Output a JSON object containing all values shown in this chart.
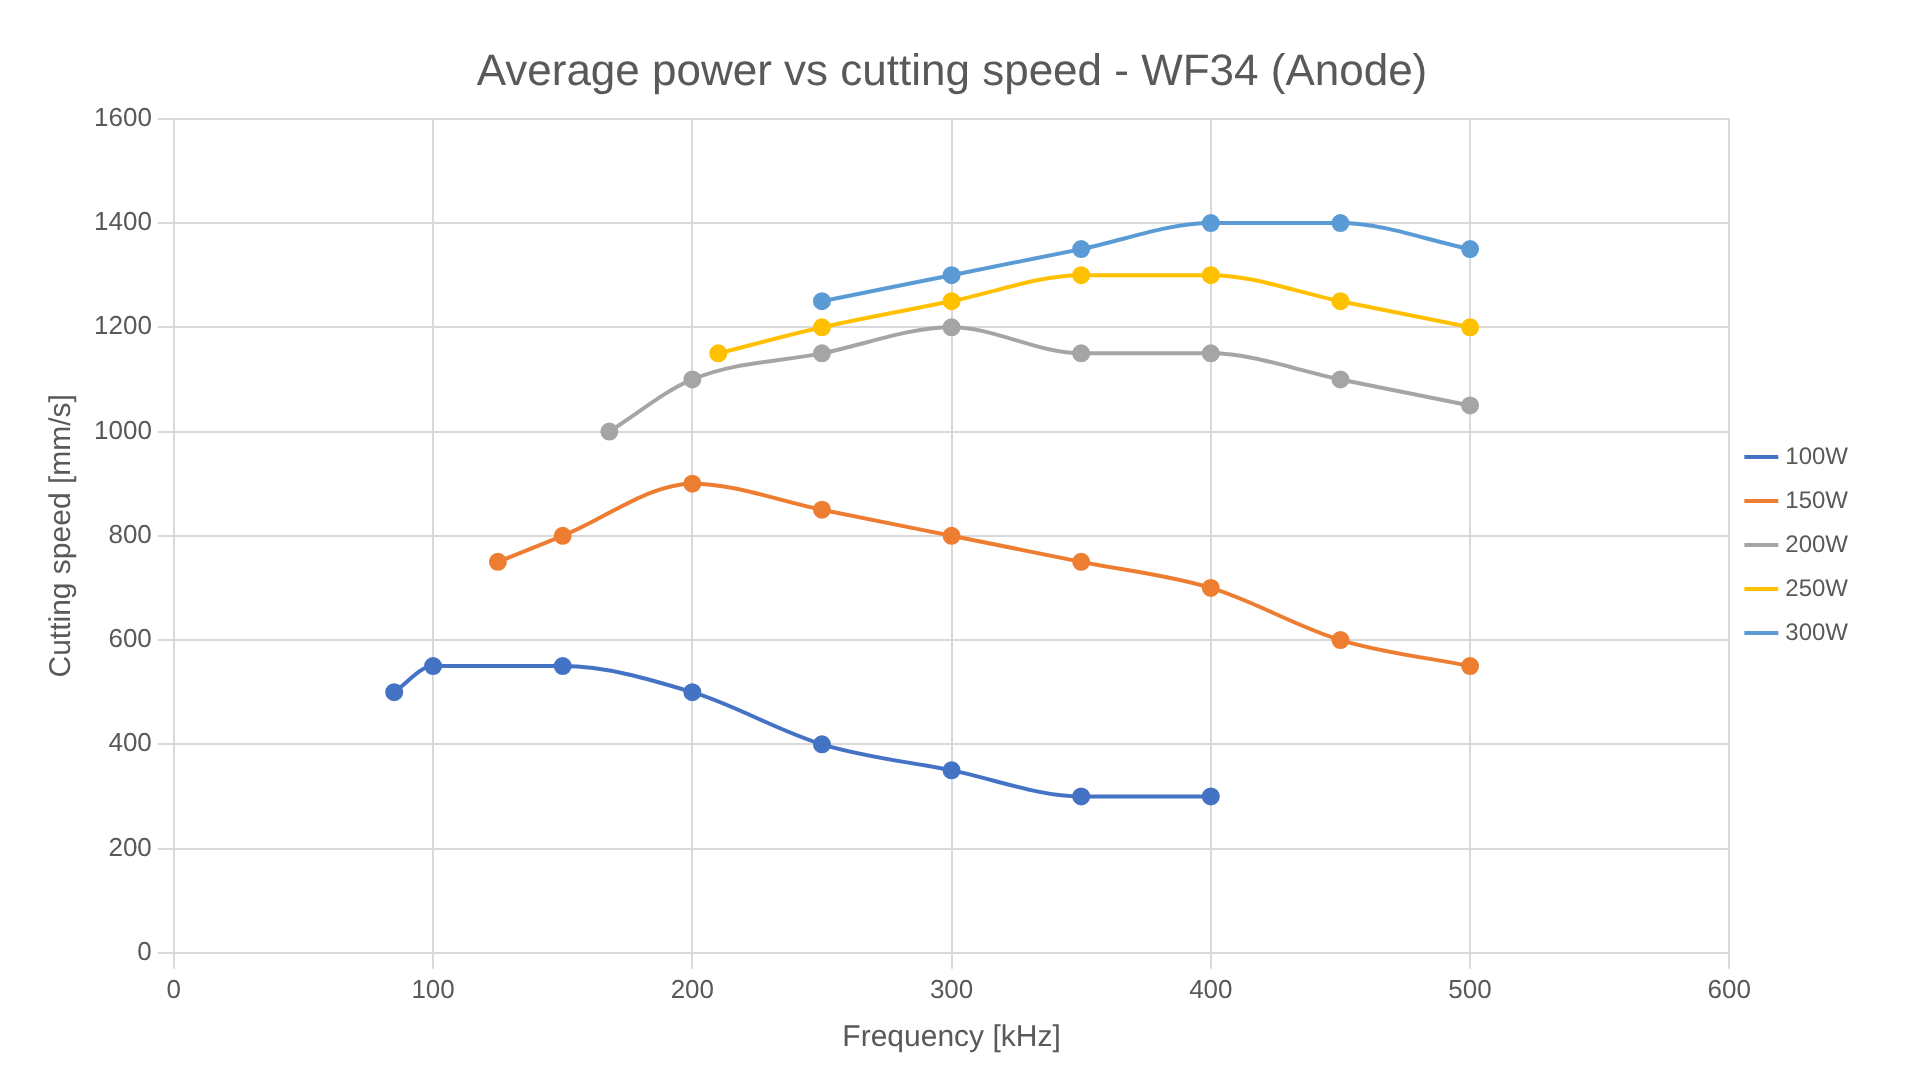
{
  "chart_data": {
    "type": "line",
    "title": "Average power vs cutting speed - WF34 (Anode)",
    "xlabel": "Frequency [kHz]",
    "ylabel": "Cutting speed [mm/s]",
    "series": [
      {
        "name": "100W",
        "color": "#4472c4",
        "x": [
          85,
          100,
          150,
          200,
          250,
          300,
          350,
          400
        ],
        "values": [
          500,
          550,
          550,
          500,
          400,
          350,
          300,
          300
        ]
      },
      {
        "name": "150W",
        "color": "#ed7d31",
        "x": [
          125,
          150,
          200,
          250,
          300,
          350,
          400,
          450,
          500
        ],
        "values": [
          750,
          800,
          900,
          850,
          800,
          750,
          700,
          600,
          550
        ]
      },
      {
        "name": "200W",
        "color": "#a5a5a5",
        "x": [
          168,
          200,
          250,
          300,
          350,
          400,
          450,
          500
        ],
        "values": [
          1000,
          1100,
          1150,
          1200,
          1150,
          1150,
          1100,
          1050
        ]
      },
      {
        "name": "250W",
        "color": "#ffc000",
        "x": [
          210,
          250,
          300,
          350,
          400,
          450,
          500
        ],
        "values": [
          1150,
          1200,
          1250,
          1300,
          1300,
          1250,
          1200
        ]
      },
      {
        "name": "300W",
        "color": "#5b9bd5",
        "x": [
          250,
          300,
          350,
          400,
          450,
          500
        ],
        "values": [
          1250,
          1300,
          1350,
          1400,
          1400,
          1350
        ]
      }
    ],
    "xlim": [
      0,
      600
    ],
    "xticks": [
      0,
      100,
      200,
      300,
      400,
      500,
      600
    ],
    "ylim": [
      0,
      1600
    ],
    "yticks": [
      0,
      200,
      400,
      600,
      800,
      1000,
      1200,
      1400,
      1600
    ],
    "grid": true,
    "legend": "right",
    "marker": "circle",
    "line_style": "solid"
  }
}
